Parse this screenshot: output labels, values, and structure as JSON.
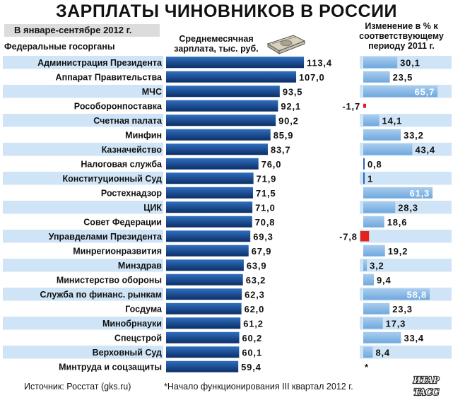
{
  "title": "ЗАРПЛАТЫ ЧИНОВНИКОВ В РОССИИ",
  "period": "В январе-сентябре 2012 г.",
  "agencies_header": "Федеральные госорганы",
  "salary_header": "Среднемесячная зарплата, тыс. руб.",
  "change_header": "Изменение в % к соответствующему периоду 2011 г.",
  "source": "Источник: Росстат (gks.ru)",
  "footnote": "*Начало функционирования III квартал 2012 г.",
  "logo_text": [
    "ИТАР",
    "ТАСС"
  ],
  "colors": {
    "bar_dark": "#0c2f66",
    "bar_light": "#6fa8de",
    "stripe": "#cfe4f6",
    "negative": "#e3231b",
    "small_bar": "#2a67b0"
  },
  "chart_data": [
    {
      "type": "bar",
      "orientation": "horizontal",
      "title": "Среднемесячная зарплата, тыс. руб.",
      "categories": [
        "Администрация Президента",
        "Аппарат Правительства",
        "МЧС",
        "Рособоронпоставка",
        "Счетная палата",
        "Минфин",
        "Казначейство",
        "Налоговая служба",
        "Конституционный Суд",
        "Ростехнадзор",
        "ЦИК",
        "Совет Федерации",
        "Управделами Президента",
        "Минрегионразвития",
        "Минздрав",
        "Министерство обороны",
        "Служба по финанс. рынкам",
        "Госдума",
        "Минобрнауки",
        "Спецстрой",
        "Верховный Суд",
        "Минтруда и соцзащиты"
      ],
      "values": [
        113.4,
        107.0,
        93.5,
        92.1,
        90.2,
        85.9,
        83.7,
        76.0,
        71.9,
        71.5,
        71.0,
        70.8,
        69.3,
        67.9,
        63.9,
        63.2,
        62.3,
        62.0,
        61.2,
        60.2,
        60.1,
        59.4
      ],
      "labels": [
        "113,4",
        "107,0",
        "93,5",
        "92,1",
        "90,2",
        "85,9",
        "83,7",
        "76,0",
        "71,9",
        "71,5",
        "71,0",
        "70,8",
        "69,3",
        "67,9",
        "63,9",
        "63,2",
        "62,3",
        "62,0",
        "61,2",
        "60,2",
        "60,1",
        "59,4"
      ]
    },
    {
      "type": "bar",
      "orientation": "horizontal",
      "title": "Изменение в % к соответствующему периоду 2011 г.",
      "categories": [
        "Администрация Президента",
        "Аппарат Правительства",
        "МЧС",
        "Рособоронпоставка",
        "Счетная палата",
        "Минфин",
        "Казначейство",
        "Налоговая служба",
        "Конституционный Суд",
        "Ростехнадзор",
        "ЦИК",
        "Совет Федерации",
        "Управделами Президента",
        "Минрегионразвития",
        "Минздрав",
        "Министерство обороны",
        "Служба по финанс. рынкам",
        "Госдума",
        "Минобрнауки",
        "Спецстрой",
        "Верховный Суд",
        "Минтруда и соцзащиты"
      ],
      "values": [
        30.1,
        23.5,
        65.7,
        -1.7,
        14.1,
        33.2,
        43.4,
        0.8,
        1,
        61.3,
        28.3,
        18.6,
        -7.8,
        19.2,
        3.2,
        9.4,
        58.8,
        23.3,
        17.3,
        33.4,
        8.4,
        null
      ],
      "labels": [
        "30,1",
        "23,5",
        "65,7",
        "-1,7",
        "14,1",
        "33,2",
        "43,4",
        "0,8",
        "1",
        "61,3",
        "28,3",
        "18,6",
        "-7,8",
        "19,2",
        "3,2",
        "9,4",
        "58,8",
        "23,3",
        "17,3",
        "33,4",
        "8,4",
        "*"
      ]
    }
  ]
}
